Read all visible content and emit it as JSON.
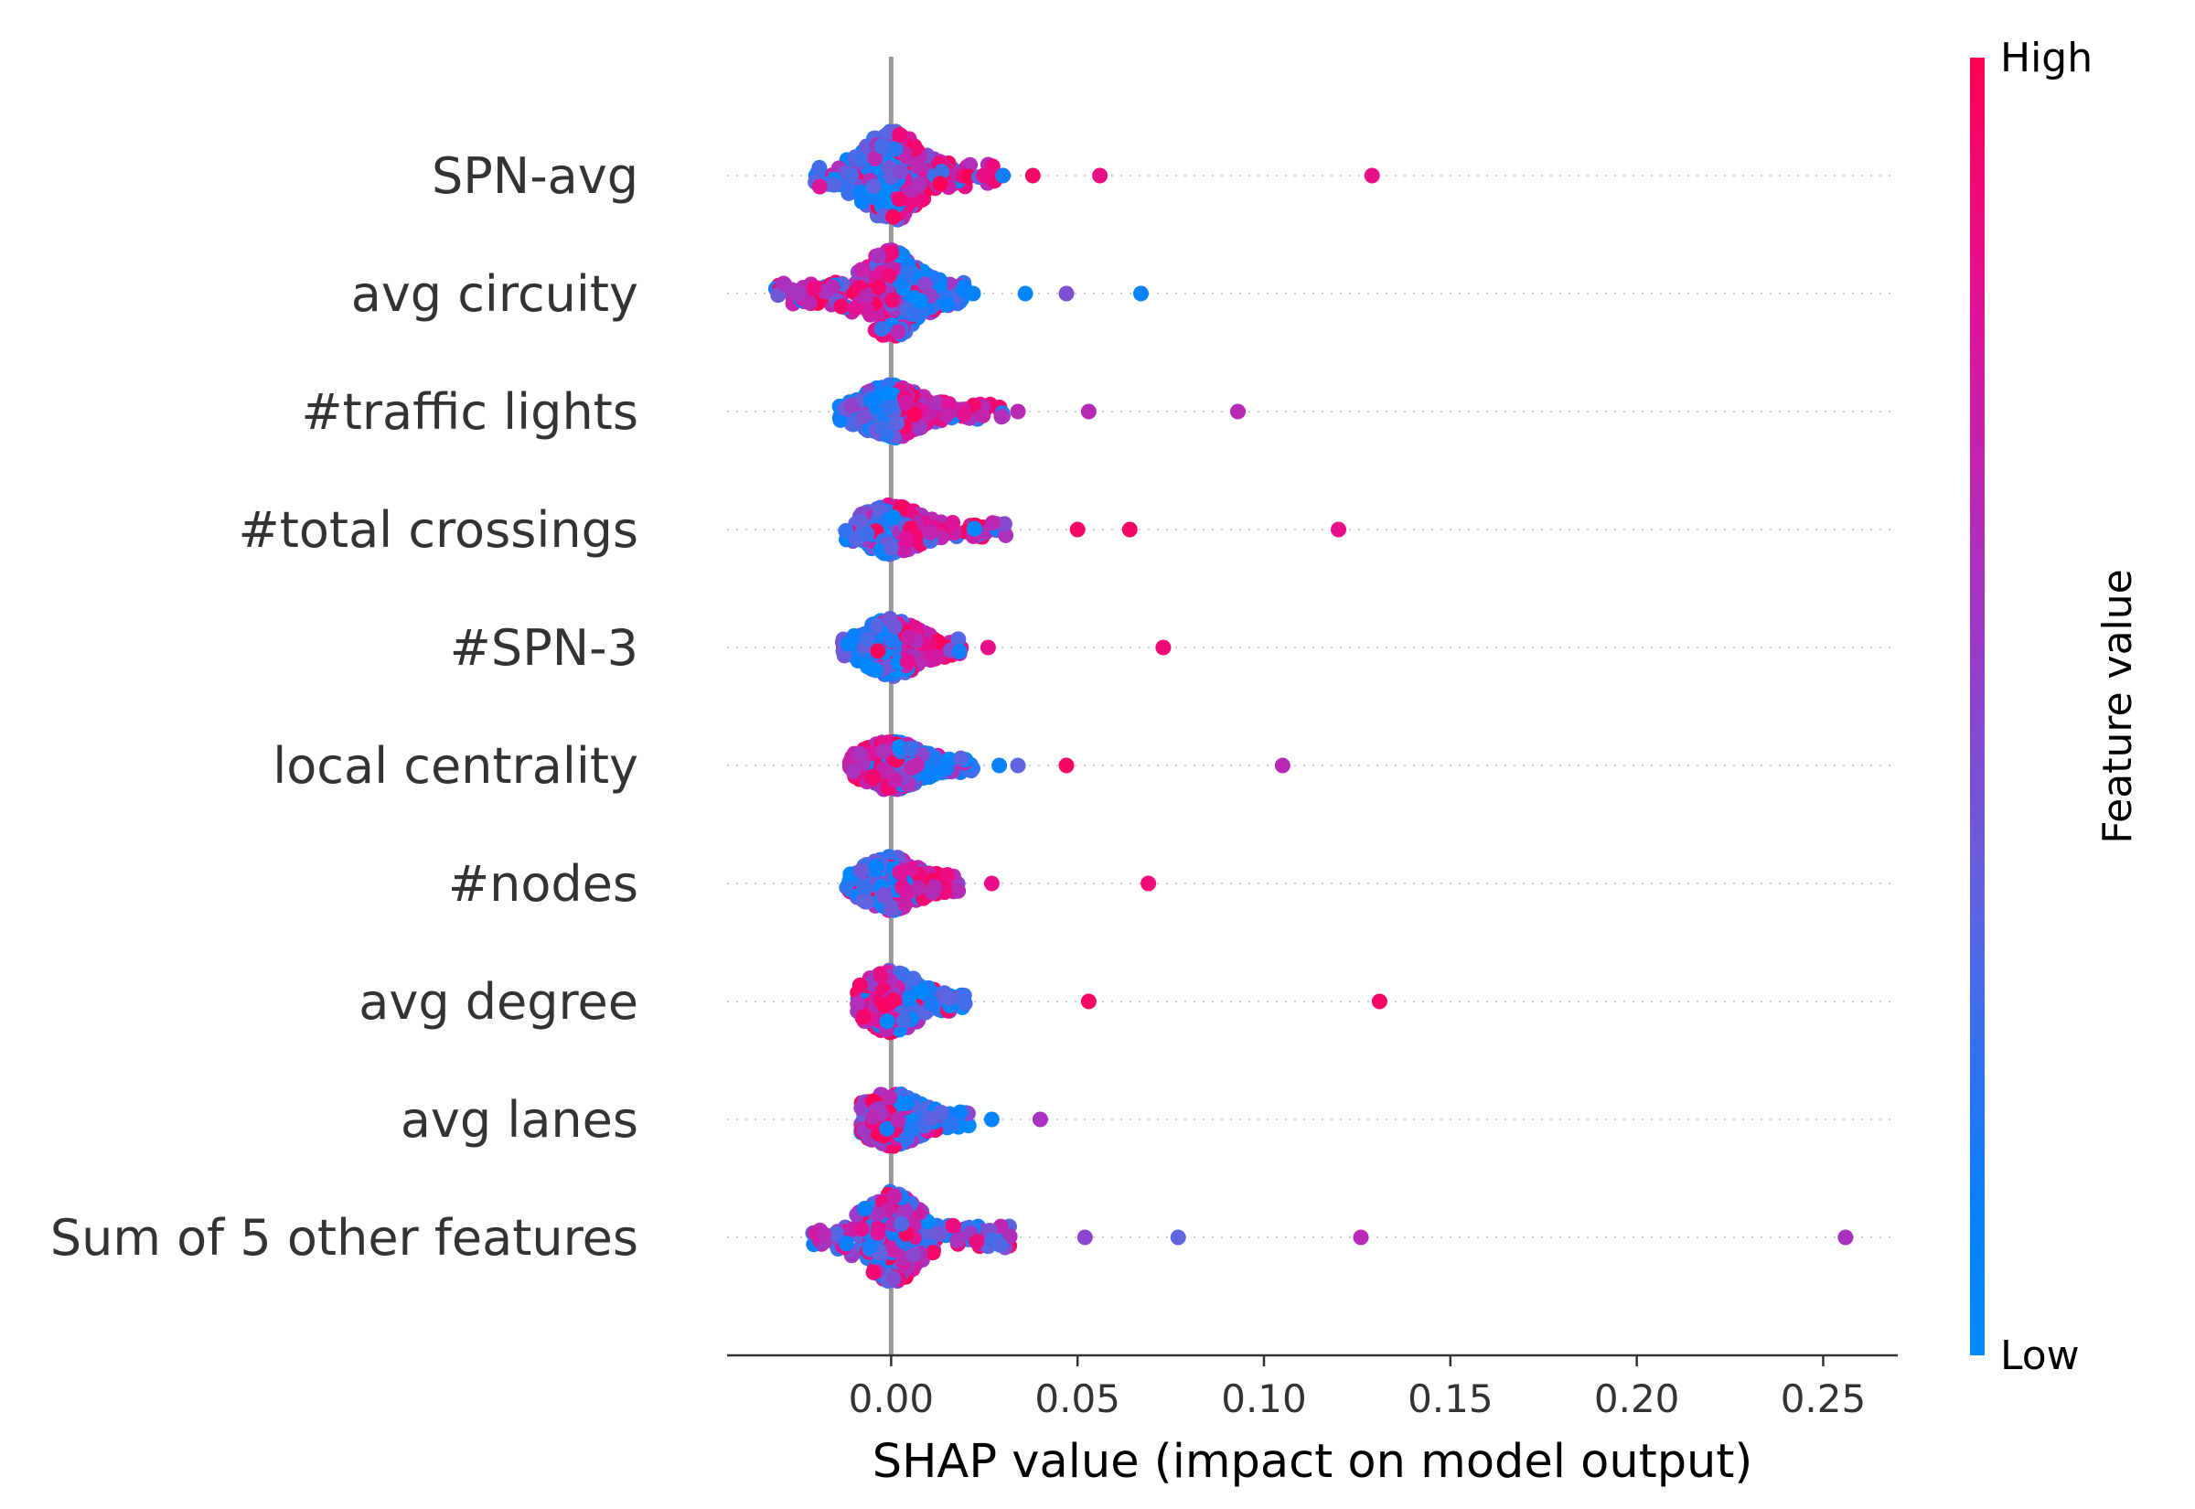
{
  "chart_data": {
    "type": "scatter",
    "subtype": "shap-beeswarm",
    "title": "",
    "xlabel": "SHAP value (impact on model output)",
    "ylabel": "",
    "xlim": [
      -0.044,
      0.27
    ],
    "x_ticks": [
      0.0,
      0.05,
      0.1,
      0.15,
      0.2,
      0.25
    ],
    "x_tick_labels": [
      "0.00",
      "0.05",
      "0.10",
      "0.15",
      "0.20",
      "0.25"
    ],
    "zero_line": true,
    "grid": false,
    "row_guides": "dotted",
    "colorbar": {
      "title": "Feature value",
      "high_label": "High",
      "low_label": "Low",
      "low_color": "#008bfb",
      "high_color": "#ff0052"
    },
    "features": [
      {
        "name": "SPN-avg",
        "bulk": [
          -0.021,
          0.028
        ],
        "low_side": "negative",
        "spread": 1.0,
        "extra_points": [
          {
            "x": 0.03,
            "v": 0.15
          },
          {
            "x": 0.038,
            "v": 0.95
          },
          {
            "x": 0.056,
            "v": 0.85
          },
          {
            "x": 0.129,
            "v": 0.85
          }
        ]
      },
      {
        "name": "avg circuity",
        "bulk": [
          -0.031,
          0.02
        ],
        "low_side": "positive",
        "spread": 0.95,
        "extra_points": [
          {
            "x": 0.022,
            "v": 0.1
          },
          {
            "x": 0.036,
            "v": 0.05
          },
          {
            "x": 0.047,
            "v": 0.45
          },
          {
            "x": 0.067,
            "v": 0.1
          }
        ]
      },
      {
        "name": "#traffic lights",
        "bulk": [
          -0.014,
          0.031
        ],
        "low_side": "negative",
        "spread": 0.55,
        "extra_points": [
          {
            "x": 0.034,
            "v": 0.65
          },
          {
            "x": 0.053,
            "v": 0.65
          },
          {
            "x": 0.093,
            "v": 0.65
          }
        ]
      },
      {
        "name": "#total crossings",
        "bulk": [
          -0.013,
          0.031
        ],
        "low_side": "negative",
        "spread": 0.5,
        "extra_points": [
          {
            "x": 0.05,
            "v": 0.95
          },
          {
            "x": 0.064,
            "v": 0.95
          },
          {
            "x": 0.12,
            "v": 0.85
          }
        ]
      },
      {
        "name": "#SPN-3",
        "bulk": [
          -0.013,
          0.02
        ],
        "low_side": "negative",
        "spread": 0.6,
        "extra_points": [
          {
            "x": 0.026,
            "v": 0.85
          },
          {
            "x": 0.073,
            "v": 0.9
          }
        ]
      },
      {
        "name": "local centrality",
        "bulk": [
          -0.011,
          0.022
        ],
        "low_side": "positive",
        "spread": 0.5,
        "extra_points": [
          {
            "x": 0.029,
            "v": 0.1
          },
          {
            "x": 0.034,
            "v": 0.35
          },
          {
            "x": 0.047,
            "v": 0.95
          },
          {
            "x": 0.105,
            "v": 0.65
          }
        ]
      },
      {
        "name": "#nodes",
        "bulk": [
          -0.012,
          0.018
        ],
        "low_side": "negative",
        "spread": 0.55,
        "extra_points": [
          {
            "x": 0.027,
            "v": 0.85
          },
          {
            "x": 0.069,
            "v": 0.9
          }
        ]
      },
      {
        "name": "avg degree",
        "bulk": [
          -0.009,
          0.02
        ],
        "low_side": "positive",
        "spread": 0.65,
        "extra_points": [
          {
            "x": 0.053,
            "v": 0.95
          },
          {
            "x": 0.131,
            "v": 0.95
          }
        ]
      },
      {
        "name": "avg lanes",
        "bulk": [
          -0.008,
          0.021
        ],
        "low_side": "positive",
        "spread": 0.55,
        "extra_points": [
          {
            "x": 0.027,
            "v": 0.1
          },
          {
            "x": 0.04,
            "v": 0.6
          }
        ]
      },
      {
        "name": "Sum of 5 other features",
        "bulk": [
          -0.021,
          0.033
        ],
        "low_side": "mixed",
        "spread": 1.0,
        "extra_points": [
          {
            "x": 0.052,
            "v": 0.5
          },
          {
            "x": 0.077,
            "v": 0.35
          },
          {
            "x": 0.126,
            "v": 0.65
          },
          {
            "x": 0.256,
            "v": 0.6
          }
        ]
      }
    ]
  }
}
